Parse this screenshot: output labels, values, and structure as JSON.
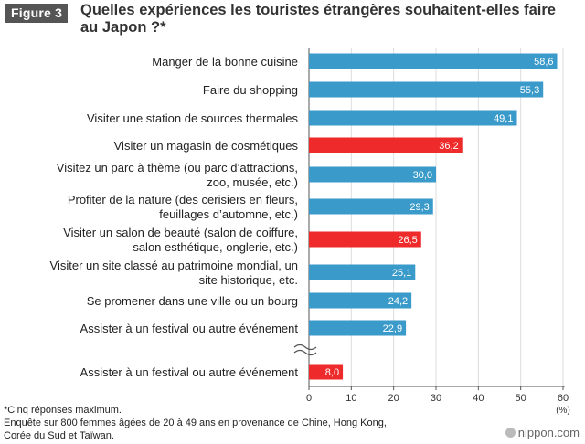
{
  "figure_label": "Figure 3",
  "title": "Quelles expériences les touristes étrangères souhaitent-elles faire au Japon ?*",
  "notes": [
    "*Cinq réponses maximum.",
    "Enquête sur 800 femmes âgées de 20 à 49 ans en provenance de Chine, Hong Kong,",
    "Corée du Sud et Taïwan."
  ],
  "source_logo": "nippon.com",
  "colors": {
    "blue": "#3a9ac9",
    "red": "#ee2a2a",
    "axis": "#555555",
    "grid": "#dddddd"
  },
  "chart_data": {
    "type": "bar",
    "orientation": "horizontal",
    "xlim": [
      0,
      60
    ],
    "xticks": [
      "0",
      "10",
      "20",
      "30",
      "40",
      "50",
      "60"
    ],
    "xunit": "(%)",
    "axis_break_before_last": true,
    "categories": [
      [
        "Manger de la bonne cuisine"
      ],
      [
        "Faire du shopping"
      ],
      [
        "Visiter une station de sources thermales"
      ],
      [
        "Visiter un magasin de cosmétiques"
      ],
      [
        "Visitez un parc à thème (ou parc d’attractions,",
        "zoo, musée, etc.)"
      ],
      [
        "Profiter de la nature (des cerisiers en fleurs,",
        "feuillages d’automne, etc.)"
      ],
      [
        "Visiter un salon de beauté (salon de coiffure,",
        "salon esthétique, onglerie, etc.)"
      ],
      [
        "Visiter un site classé au patrimoine mondial, un",
        "site historique, etc."
      ],
      [
        "Se promener dans une ville ou un bourg"
      ],
      [
        "Assister à un festival ou autre événement"
      ],
      [
        "Assister à un festival ou autre événement"
      ]
    ],
    "values": [
      58.6,
      55.3,
      49.1,
      36.2,
      30.0,
      29.3,
      26.5,
      25.1,
      24.2,
      22.9,
      8.0
    ],
    "value_labels": [
      "58,6",
      "55,3",
      "49,1",
      "36,2",
      "30,0",
      "29,3",
      "26,5",
      "25,1",
      "24,2",
      "22,9",
      "8,0"
    ],
    "highlighted": [
      false,
      false,
      false,
      true,
      false,
      false,
      true,
      false,
      false,
      false,
      true
    ]
  }
}
